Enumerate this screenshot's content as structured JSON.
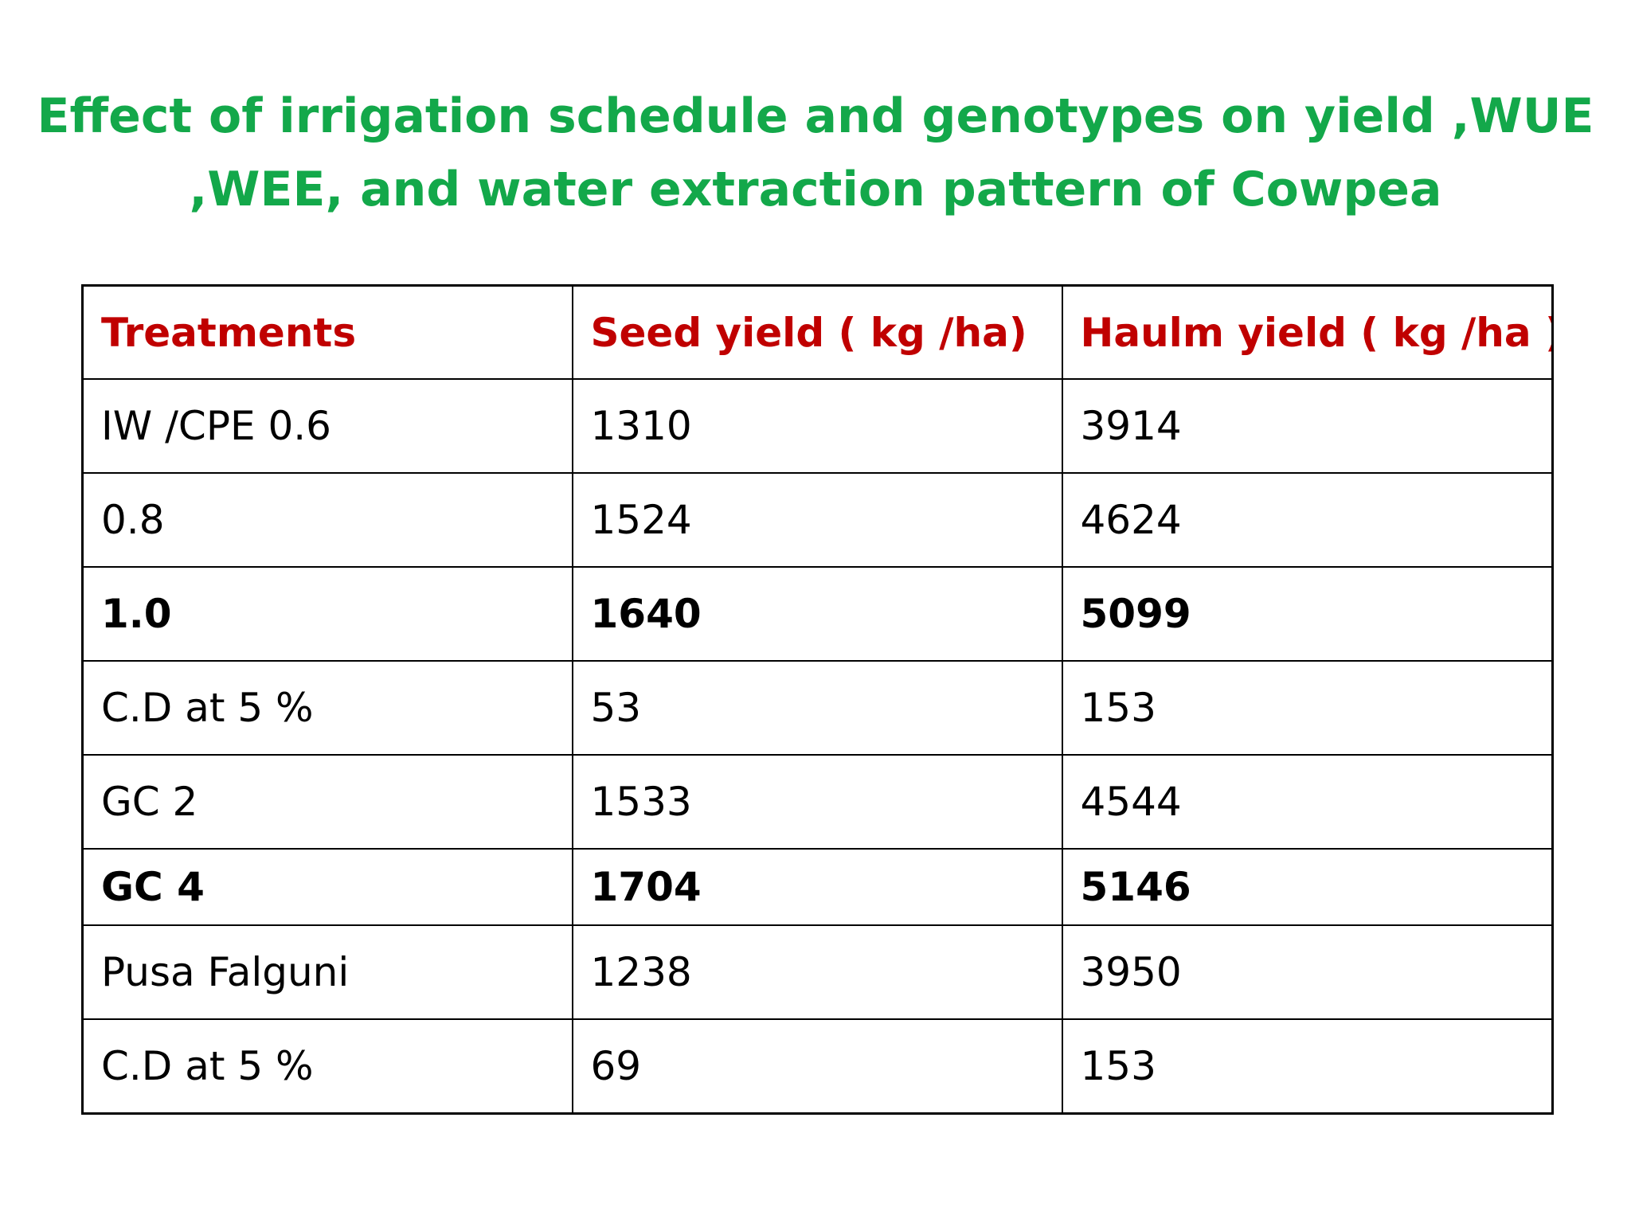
{
  "title": {
    "line1": "Effect of irrigation schedule and genotypes on yield ,WUE",
    "line2": ",WEE, and water extraction pattern of Cowpea"
  },
  "table": {
    "headers": [
      "Treatments",
      "Seed yield ( kg /ha)",
      "Haulm yield ( kg /ha )"
    ],
    "rows": [
      {
        "cells": [
          "IW /CPE 0.6",
          "1310",
          "3914"
        ],
        "bold": false
      },
      {
        "cells": [
          "0.8",
          "1524",
          "4624"
        ],
        "bold": false
      },
      {
        "cells": [
          "1.0",
          "1640",
          "5099"
        ],
        "bold": true
      },
      {
        "cells": [
          "C.D at 5 %",
          "53",
          "153"
        ],
        "bold": false
      },
      {
        "cells": [
          "GC 2",
          "1533",
          "4544"
        ],
        "bold": false
      },
      {
        "cells": [
          "GC 4",
          "1704",
          "5146"
        ],
        "bold": true
      },
      {
        "cells": [
          "Pusa Falguni",
          "1238",
          "3950"
        ],
        "bold": false
      },
      {
        "cells": [
          "C.D at 5 %",
          "69",
          "153"
        ],
        "bold": false
      }
    ]
  },
  "colors": {
    "title": "#13a84a",
    "header_text": "#c00000",
    "body_text": "#000000",
    "border": "#000000"
  }
}
